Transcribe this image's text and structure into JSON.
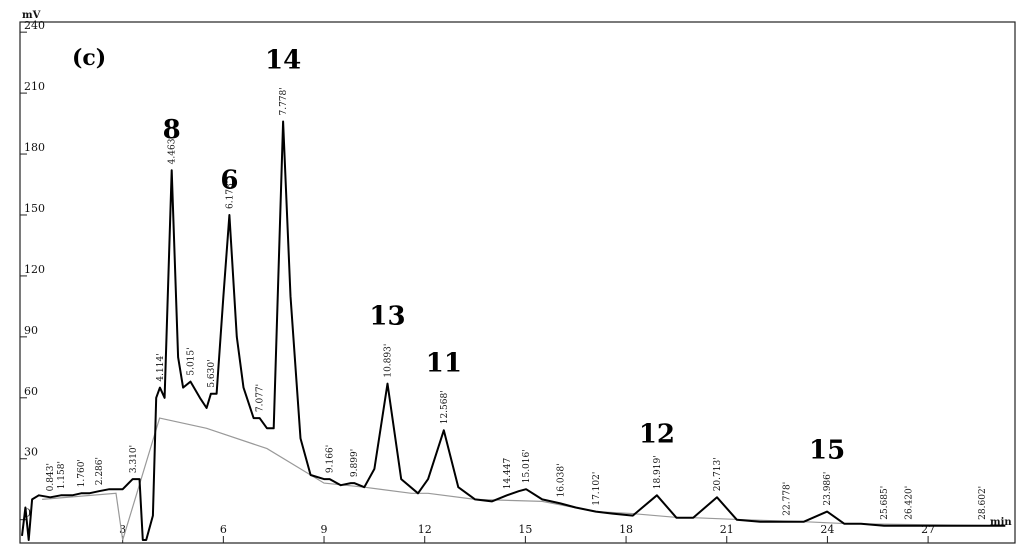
{
  "chart_data": {
    "type": "line",
    "panel_label": "(c)",
    "y_unit": "mV",
    "x_unit": "min",
    "xlim": [
      0,
      29.5
    ],
    "ylim": [
      -10,
      245
    ],
    "y_ticks": [
      "0",
      "30",
      "60",
      "90",
      "120",
      "150",
      "180",
      "210",
      "240"
    ],
    "x_ticks": [
      "3",
      "6",
      "9",
      "12",
      "15",
      "18",
      "21",
      "24",
      "27"
    ],
    "x_tick_values": [
      3,
      6,
      9,
      12,
      15,
      18,
      21,
      24,
      27
    ],
    "y_tick_values": [
      0,
      30,
      60,
      90,
      120,
      150,
      180,
      210,
      240
    ],
    "grid": false,
    "series": [
      {
        "x": [
          0.0,
          0.1,
          0.2,
          0.3,
          0.5,
          0.84,
          1.16,
          1.5,
          1.76,
          2.0,
          2.29,
          2.6,
          3.0,
          3.3,
          3.5,
          3.6,
          3.7,
          3.9,
          4.0,
          4.11,
          4.25,
          4.46,
          4.65,
          4.8,
          5.02,
          5.3,
          5.5,
          5.63,
          5.8,
          6.0,
          6.18,
          6.4,
          6.6,
          6.9,
          7.08,
          7.3,
          7.5,
          7.78,
          8.0,
          8.3,
          8.6,
          9.0,
          9.17,
          9.5,
          9.8,
          9.9,
          10.2,
          10.5,
          10.89,
          11.3,
          11.8,
          12.1,
          12.57,
          13.0,
          13.5,
          14.0,
          14.45,
          14.8,
          15.02,
          15.5,
          16.04,
          16.5,
          17.1,
          17.6,
          18.2,
          18.92,
          19.5,
          20.0,
          20.71,
          21.3,
          22.0,
          22.78,
          23.3,
          23.99,
          24.5,
          25.0,
          25.69,
          26.42,
          27.2,
          28.0,
          28.6,
          29.3
        ],
        "y": [
          -8,
          6,
          -10,
          10,
          12,
          11,
          12,
          12,
          13,
          13,
          14,
          15,
          15,
          20,
          20,
          -10,
          -10,
          2,
          60,
          65,
          60,
          172,
          80,
          65,
          68,
          60,
          55,
          62,
          62,
          110,
          150,
          90,
          65,
          50,
          50,
          45,
          45,
          196,
          110,
          40,
          22,
          20,
          20,
          17,
          18,
          18,
          16,
          25,
          67,
          20,
          13,
          20,
          44,
          16,
          10,
          9,
          12,
          14,
          15,
          10,
          8,
          6,
          4,
          3,
          2,
          12,
          1,
          1,
          11,
          0,
          -1,
          -1,
          -1,
          4,
          -2,
          -2,
          -3,
          -3,
          -3,
          -3,
          -3,
          -3
        ]
      }
    ],
    "peak_labels": [
      {
        "x": 0.84,
        "y": 11,
        "text": "0.843'"
      },
      {
        "x": 1.16,
        "y": 12,
        "text": "1.158'"
      },
      {
        "x": 1.76,
        "y": 13,
        "text": "1.760'"
      },
      {
        "x": 2.29,
        "y": 14,
        "text": "2.286'"
      },
      {
        "x": 3.31,
        "y": 20,
        "text": "3.310'"
      },
      {
        "x": 4.11,
        "y": 65,
        "text": "4.114'"
      },
      {
        "x": 4.46,
        "y": 172,
        "text": "4.463'"
      },
      {
        "x": 5.02,
        "y": 68,
        "text": "5.015'"
      },
      {
        "x": 5.63,
        "y": 62,
        "text": "5.630'"
      },
      {
        "x": 6.18,
        "y": 150,
        "text": "6.178'"
      },
      {
        "x": 7.08,
        "y": 50,
        "text": "7.077'"
      },
      {
        "x": 7.78,
        "y": 196,
        "text": "7.778'"
      },
      {
        "x": 9.17,
        "y": 20,
        "text": "9.166'"
      },
      {
        "x": 9.9,
        "y": 18,
        "text": "9.899'"
      },
      {
        "x": 10.89,
        "y": 67,
        "text": "10.893'"
      },
      {
        "x": 12.57,
        "y": 44,
        "text": "12.568'"
      },
      {
        "x": 14.45,
        "y": 12,
        "text": "14.447"
      },
      {
        "x": 15.02,
        "y": 15,
        "text": "15.016'"
      },
      {
        "x": 16.04,
        "y": 8,
        "text": "16.038'"
      },
      {
        "x": 17.1,
        "y": 4,
        "text": "17.102'"
      },
      {
        "x": 18.92,
        "y": 12,
        "text": "18.919'"
      },
      {
        "x": 20.71,
        "y": 11,
        "text": "20.713'"
      },
      {
        "x": 22.78,
        "y": -1,
        "text": "22.778'"
      },
      {
        "x": 23.99,
        "y": 4,
        "text": "23.986'"
      },
      {
        "x": 25.69,
        "y": -3,
        "text": "25.685'"
      },
      {
        "x": 26.42,
        "y": -3,
        "text": "26.420'"
      },
      {
        "x": 28.6,
        "y": -3,
        "text": "28.602'"
      }
    ],
    "annotations": [
      {
        "text": "8",
        "x": 4.46,
        "y": 188
      },
      {
        "text": "6",
        "x": 6.18,
        "y": 163
      },
      {
        "text": "14",
        "x": 7.78,
        "y": 222
      },
      {
        "text": "13",
        "x": 10.89,
        "y": 96
      },
      {
        "text": "11",
        "x": 12.57,
        "y": 73
      },
      {
        "text": "12",
        "x": 18.92,
        "y": 38
      },
      {
        "text": "15",
        "x": 23.99,
        "y": 30
      }
    ]
  }
}
